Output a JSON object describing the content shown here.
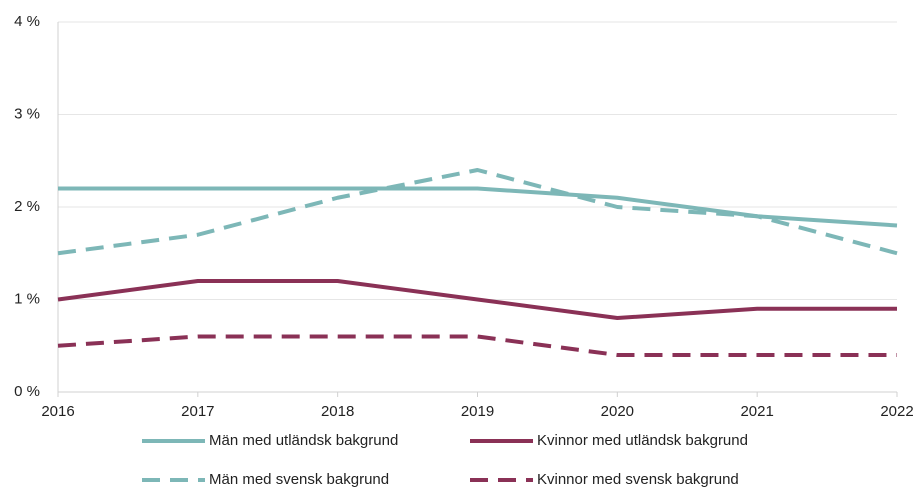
{
  "chart_data": {
    "type": "line",
    "x": [
      2016,
      2017,
      2018,
      2019,
      2020,
      2021,
      2022
    ],
    "xlim": [
      2016,
      2022
    ],
    "xticks": [
      2016,
      2017,
      2018,
      2019,
      2020,
      2021,
      2022
    ],
    "ylim": [
      0,
      4
    ],
    "yticks": [
      {
        "value": 0,
        "label": "0 %"
      },
      {
        "value": 1,
        "label": "1 %"
      },
      {
        "value": 2,
        "label": "2 %"
      },
      {
        "value": 3,
        "label": "3 %"
      },
      {
        "value": 4,
        "label": "4 %"
      }
    ],
    "grid": true,
    "legend": "bottom",
    "series": [
      {
        "name": "Män med utländsk bakgrund",
        "color": "#7db7b7",
        "dashed": false,
        "values": [
          2.2,
          2.2,
          2.2,
          2.2,
          2.1,
          1.9,
          1.8
        ]
      },
      {
        "name": "Kvinnor med utländsk bakgrund",
        "color": "#8a3156",
        "dashed": false,
        "values": [
          1.0,
          1.2,
          1.2,
          1.0,
          0.8,
          0.9,
          0.9
        ]
      },
      {
        "name": "Män med svensk bakgrund",
        "color": "#7db7b7",
        "dashed": true,
        "values": [
          1.5,
          1.7,
          2.1,
          2.4,
          2.0,
          1.9,
          1.5
        ]
      },
      {
        "name": "Kvinnor med svensk bakgrund",
        "color": "#8a3156",
        "dashed": true,
        "values": [
          0.5,
          0.6,
          0.6,
          0.6,
          0.4,
          0.4,
          0.4
        ]
      }
    ]
  }
}
